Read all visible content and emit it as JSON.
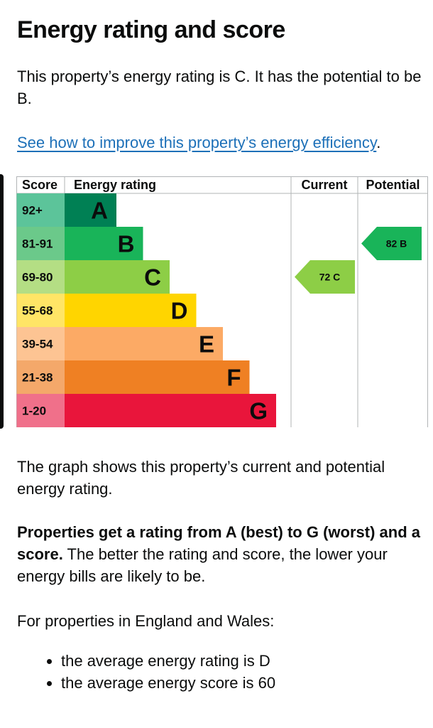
{
  "page": {
    "title": "Energy rating and score",
    "intro": "This property’s energy rating is C. It has the potential to be B.",
    "improve_link": "See how to improve this property’s energy efficiency",
    "improve_link_suffix": ".",
    "graph_note": "The graph shows this property’s current and potential energy rating.",
    "ratings_bold": "Properties get a rating from A (best) to G (worst) and a score.",
    "ratings_rest": " The better the rating and score, the lower your energy bills are likely to be.",
    "region_intro": "For properties in England and Wales:",
    "bullets": [
      "the average energy rating is D",
      "the average energy score is 60"
    ]
  },
  "chart_data": {
    "type": "table",
    "headers": {
      "score": "Score",
      "rating": "Energy rating",
      "current": "Current",
      "potential": "Potential"
    },
    "bands": [
      {
        "range": "92+",
        "letter": "A",
        "color": "#008054",
        "range_bg": "#5cc49a"
      },
      {
        "range": "81-91",
        "letter": "B",
        "color": "#19b459",
        "range_bg": "#6bc98a"
      },
      {
        "range": "69-80",
        "letter": "C",
        "color": "#8dce46",
        "range_bg": "#b4de84"
      },
      {
        "range": "55-68",
        "letter": "D",
        "color": "#ffd500",
        "range_bg": "#ffe566"
      },
      {
        "range": "39-54",
        "letter": "E",
        "color": "#fcaa65",
        "range_bg": "#fdc493"
      },
      {
        "range": "21-38",
        "letter": "F",
        "color": "#ef8023",
        "range_bg": "#f4a86a"
      },
      {
        "range": "1-20",
        "letter": "G",
        "color": "#e9153b",
        "range_bg": "#f0708a"
      }
    ],
    "current": {
      "score": 72,
      "letter": "C",
      "label": "72  C"
    },
    "potential": {
      "score": 82,
      "letter": "B",
      "label": "82  B"
    }
  }
}
